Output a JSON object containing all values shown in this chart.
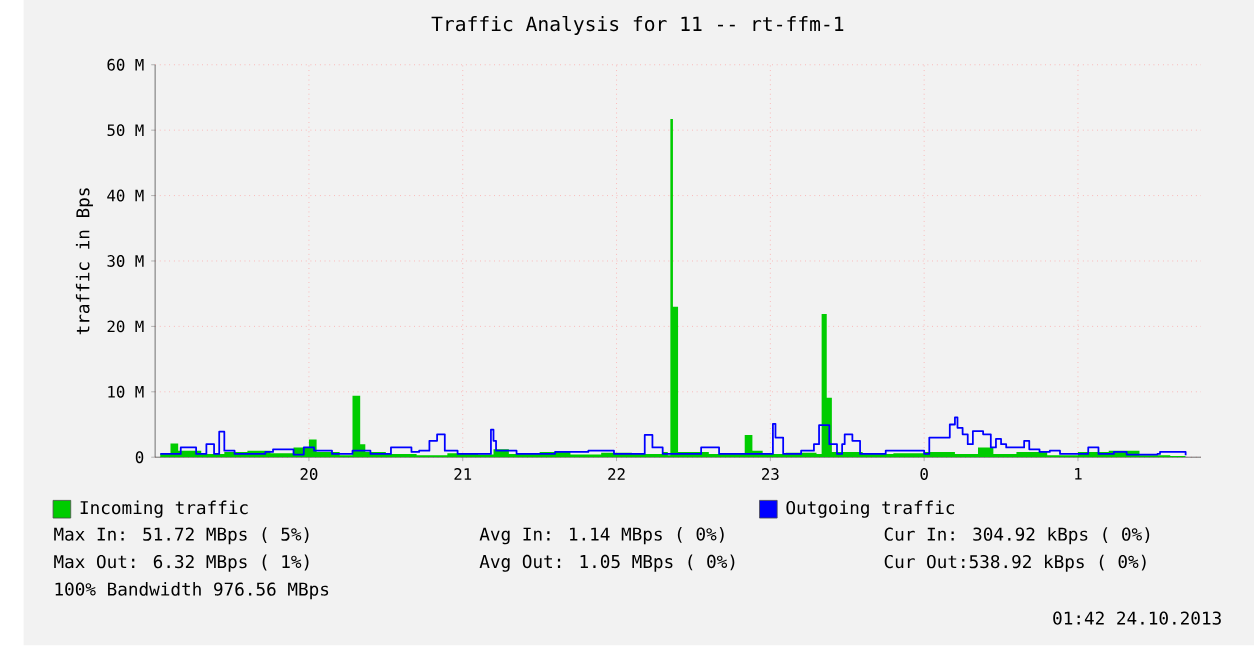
{
  "chart_data": {
    "type": "area",
    "title": "Traffic Analysis for 11 -- rt-ffm-1",
    "ylabel": "traffic in Bps",
    "xlim": [
      "2013-10-23T19:00",
      "2013-10-24T01:48"
    ],
    "ylim": [
      0,
      60
    ],
    "xticks": [
      {
        "value": "2013-10-23T20:00",
        "label": "20"
      },
      {
        "value": "2013-10-23T21:00",
        "label": "21"
      },
      {
        "value": "2013-10-23T22:00",
        "label": "22"
      },
      {
        "value": "2013-10-23T23:00",
        "label": "23"
      },
      {
        "value": "2013-10-24T00:00",
        "label": "0"
      },
      {
        "value": "2013-10-24T01:00",
        "label": "1"
      }
    ],
    "yticks": [
      {
        "value": 0,
        "label": "0"
      },
      {
        "value": 10,
        "label": "10 M"
      },
      {
        "value": 20,
        "label": "20 M"
      },
      {
        "value": 30,
        "label": "30 M"
      },
      {
        "value": 40,
        "label": "40 M"
      },
      {
        "value": 50,
        "label": "50 M"
      },
      {
        "value": 60,
        "label": "60 M"
      }
    ],
    "grid": true,
    "legend": "bottom",
    "series": [
      {
        "name": "Incoming traffic",
        "color": "#00cc00",
        "x": [
          "2013-10-23T19:02",
          "2013-10-23T19:06",
          "2013-10-23T19:09",
          "2013-10-23T19:18",
          "2013-10-23T19:27",
          "2013-10-23T19:36",
          "2013-10-23T19:45",
          "2013-10-23T19:54",
          "2013-10-23T20:00",
          "2013-10-23T20:03",
          "2013-10-23T20:12",
          "2013-10-23T20:17",
          "2013-10-23T20:20",
          "2013-10-23T20:22",
          "2013-10-23T20:30",
          "2013-10-23T20:42",
          "2013-10-23T20:54",
          "2013-10-23T21:06",
          "2013-10-23T21:12",
          "2013-10-23T21:18",
          "2013-10-23T21:30",
          "2013-10-23T21:42",
          "2013-10-23T21:54",
          "2013-10-23T22:06",
          "2013-10-23T22:18",
          "2013-10-23T22:20",
          "2013-10-23T22:21",
          "2013-10-23T22:22",
          "2013-10-23T22:24",
          "2013-10-23T22:36",
          "2013-10-23T22:50",
          "2013-10-23T22:53",
          "2013-10-23T22:57",
          "2013-10-23T23:06",
          "2013-10-23T23:18",
          "2013-10-23T23:20",
          "2013-10-23T23:22",
          "2013-10-23T23:24",
          "2013-10-23T23:36",
          "2013-10-23T23:48",
          "2013-10-24T00:00",
          "2013-10-24T00:12",
          "2013-10-24T00:21",
          "2013-10-24T00:27",
          "2013-10-24T00:36",
          "2013-10-24T00:48",
          "2013-10-24T01:00",
          "2013-10-24T01:12",
          "2013-10-24T01:24",
          "2013-10-24T01:36",
          "2013-10-24T01:42"
        ],
        "values": [
          0.5,
          2.1,
          1.0,
          0.5,
          0.8,
          1.0,
          0.6,
          1.5,
          2.7,
          0.8,
          0.3,
          9.4,
          2.0,
          0.8,
          0.5,
          0.3,
          0.6,
          0.4,
          1.2,
          0.5,
          0.8,
          0.4,
          0.7,
          0.5,
          0.8,
          0.3,
          51.7,
          23.0,
          0.8,
          0.5,
          3.4,
          1.0,
          0.5,
          0.7,
          0.5,
          21.9,
          9.1,
          0.8,
          0.5,
          0.6,
          0.8,
          0.5,
          1.5,
          0.5,
          0.8,
          0.3,
          0.8,
          1.0,
          0.3,
          0.2,
          0.2
        ]
      },
      {
        "name": "Outgoing traffic",
        "type": "step",
        "color": "#0000ff",
        "x": [
          "2013-10-23T19:02",
          "2013-10-23T19:10",
          "2013-10-23T19:16",
          "2013-10-23T19:20",
          "2013-10-23T19:23",
          "2013-10-23T19:25",
          "2013-10-23T19:27",
          "2013-10-23T19:31",
          "2013-10-23T19:43",
          "2013-10-23T19:46",
          "2013-10-23T19:54",
          "2013-10-23T19:58",
          "2013-10-23T20:02",
          "2013-10-23T20:09",
          "2013-10-23T20:17",
          "2013-10-23T20:24",
          "2013-10-23T20:32",
          "2013-10-23T20:40",
          "2013-10-23T20:43",
          "2013-10-23T20:47",
          "2013-10-23T20:50",
          "2013-10-23T20:53",
          "2013-10-23T20:58",
          "2013-10-23T21:10",
          "2013-10-23T21:11",
          "2013-10-23T21:12",
          "2013-10-23T21:13",
          "2013-10-23T21:21",
          "2013-10-23T21:36",
          "2013-10-23T21:49",
          "2013-10-23T21:59",
          "2013-10-23T22:11",
          "2013-10-23T22:14",
          "2013-10-23T22:18",
          "2013-10-23T22:25",
          "2013-10-23T22:33",
          "2013-10-23T22:40",
          "2013-10-23T23:01",
          "2013-10-23T23:02",
          "2013-10-23T23:05",
          "2013-10-23T23:12",
          "2013-10-23T23:17",
          "2013-10-23T23:19",
          "2013-10-23T23:23",
          "2013-10-23T23:26",
          "2013-10-23T23:28",
          "2013-10-23T23:29",
          "2013-10-23T23:32",
          "2013-10-23T23:35",
          "2013-10-23T23:43",
          "2013-10-23T23:45",
          "2013-10-24T00:00",
          "2013-10-24T00:02",
          "2013-10-24T00:07",
          "2013-10-24T00:10",
          "2013-10-24T00:12",
          "2013-10-24T00:13",
          "2013-10-24T00:15",
          "2013-10-24T00:17",
          "2013-10-24T00:19",
          "2013-10-24T00:23",
          "2013-10-24T00:26",
          "2013-10-24T00:28",
          "2013-10-24T00:30",
          "2013-10-24T00:32",
          "2013-10-24T00:36",
          "2013-10-24T00:39",
          "2013-10-24T00:41",
          "2013-10-24T00:45",
          "2013-10-24T00:49",
          "2013-10-24T00:53",
          "2013-10-24T01:01",
          "2013-10-24T01:04",
          "2013-10-24T01:08",
          "2013-10-24T01:14",
          "2013-10-24T01:19",
          "2013-10-24T01:31",
          "2013-10-24T01:32",
          "2013-10-24T01:42"
        ],
        "values": [
          0.5,
          1.5,
          0.5,
          2.0,
          0.5,
          3.9,
          1.0,
          0.5,
          0.8,
          1.2,
          0.4,
          1.5,
          1.0,
          0.5,
          1.0,
          0.5,
          1.5,
          0.8,
          1.0,
          2.5,
          3.5,
          1.0,
          0.5,
          0.5,
          4.2,
          2.5,
          1.0,
          0.5,
          0.8,
          1.0,
          0.5,
          3.4,
          1.5,
          0.5,
          0.5,
          1.5,
          0.5,
          5.1,
          3.0,
          0.5,
          1.0,
          2.0,
          4.9,
          2.0,
          0.5,
          2.0,
          3.5,
          2.5,
          0.5,
          0.5,
          1.0,
          0.5,
          3.0,
          3.0,
          5.0,
          6.1,
          4.5,
          3.5,
          2.0,
          4.0,
          3.5,
          1.5,
          2.8,
          2.0,
          1.5,
          1.5,
          2.5,
          1.2,
          0.8,
          1.0,
          0.5,
          0.5,
          1.5,
          0.5,
          0.8,
          0.4,
          0.5,
          0.8,
          0.3
        ]
      }
    ],
    "annotations": [
      "Max In: 51.72 MBps ( 5%)",
      "Avg In: 1.14 MBps ( 0%)",
      "Cur In: 304.92 kBps ( 0%)",
      "Max Out: 6.32 MBps ( 1%)",
      "Avg Out: 1.05 MBps ( 0%)",
      "Cur Out:538.92 kBps ( 0%)",
      "100% Bandwidth 976.56 MBps",
      "01:42 24.10.2013"
    ]
  }
}
